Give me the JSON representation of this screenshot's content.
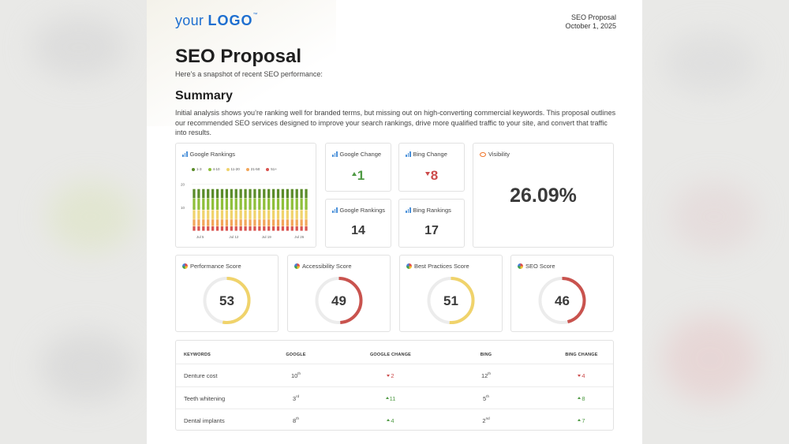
{
  "header": {
    "logo_prefix": "your",
    "logo_main": "LOGO",
    "logo_tm": "™",
    "doc_name": "SEO Proposal",
    "date": "October 1, 2025"
  },
  "title": "SEO Proposal",
  "subtitle": "Here’s a snapshot of recent SEO performance:",
  "summary": {
    "heading": "Summary",
    "text": "Initial analysis shows you’re ranking well for branded terms, but missing out on high-converting commercial keywords. This proposal outlines our recommended SEO services designed to improve your search rankings, drive more qualified traffic to your site, and convert that traffic into results."
  },
  "metrics": {
    "google_change": {
      "label": "Google Change",
      "value": "1",
      "direction": "up"
    },
    "bing_change": {
      "label": "Bing Change",
      "value": "8",
      "direction": "down"
    },
    "google_rankings": {
      "label": "Google Rankings",
      "value": "14"
    },
    "bing_rankings": {
      "label": "Bing Rankings",
      "value": "17"
    },
    "visibility": {
      "label": "Visibility",
      "value": "26.09%"
    }
  },
  "chart_data": {
    "type": "bar",
    "title": "Google Rankings",
    "stacked": true,
    "legend": [
      "1-3",
      "4-10",
      "11-20",
      "21-50",
      "51+"
    ],
    "colors": [
      "#5b8c2a",
      "#8fbf3a",
      "#f0d36b",
      "#f2a65a",
      "#d9534f"
    ],
    "y_ticks": [
      "20",
      "10"
    ],
    "x_ticks": [
      "Jul 5",
      "Jul 12",
      "Jul 19",
      "Jul 26"
    ],
    "ylim": [
      0,
      25
    ],
    "categories": [
      "1",
      "2",
      "3",
      "4",
      "5",
      "6",
      "7",
      "8",
      "9",
      "10",
      "11",
      "12",
      "13",
      "14",
      "15",
      "16",
      "17",
      "18",
      "19",
      "20",
      "21",
      "22",
      "23",
      "24",
      "25"
    ],
    "series": [
      {
        "name": "1-3",
        "values": [
          4,
          4,
          4,
          4,
          4,
          4,
          4,
          4,
          4,
          4,
          4,
          4,
          4,
          4,
          4,
          4,
          4,
          4,
          4,
          4,
          4,
          4,
          4,
          4,
          4
        ]
      },
      {
        "name": "4-10",
        "values": [
          5,
          5,
          5,
          5,
          5,
          5,
          5,
          5,
          5,
          5,
          5,
          5,
          5,
          5,
          5,
          5,
          5,
          5,
          5,
          5,
          5,
          5,
          5,
          5,
          5
        ]
      },
      {
        "name": "11-20",
        "values": [
          4,
          4,
          4,
          4,
          4,
          4,
          4,
          4,
          4,
          4,
          4,
          4,
          4,
          4,
          4,
          4,
          4,
          4,
          4,
          4,
          4,
          4,
          4,
          4,
          4
        ]
      },
      {
        "name": "21-50",
        "values": [
          3,
          3,
          3,
          3,
          3,
          3,
          3,
          3,
          3,
          3,
          3,
          3,
          3,
          3,
          3,
          3,
          3,
          3,
          3,
          3,
          3,
          3,
          3,
          3,
          3
        ]
      },
      {
        "name": "51+",
        "values": [
          2,
          2,
          2,
          2,
          2,
          2,
          2,
          2,
          2,
          2,
          2,
          2,
          2,
          2,
          2,
          2,
          2,
          2,
          2,
          2,
          2,
          2,
          2,
          2,
          2
        ]
      }
    ]
  },
  "scores": [
    {
      "label": "Performance Score",
      "value": "53",
      "color": "#f0d36b"
    },
    {
      "label": "Accessibility Score",
      "value": "49",
      "color": "#c9534e"
    },
    {
      "label": "Best Practices Score",
      "value": "51",
      "color": "#f0d36b"
    },
    {
      "label": "SEO Score",
      "value": "46",
      "color": "#c9534e"
    }
  ],
  "table": {
    "headers": [
      "KEYWORDS",
      "GOOGLE",
      "GOOGLE CHANGE",
      "BING",
      "BING CHANGE"
    ],
    "rows": [
      {
        "keyword": "Denture cost",
        "google": "10",
        "google_sup": "th",
        "gchange": "2",
        "gdir": "down",
        "bing": "12",
        "bing_sup": "th",
        "bchange": "4",
        "bdir": "down"
      },
      {
        "keyword": "Teeth whitening",
        "google": "3",
        "google_sup": "rd",
        "gchange": "11",
        "gdir": "up",
        "bing": "5",
        "bing_sup": "th",
        "bchange": "8",
        "bdir": "up"
      },
      {
        "keyword": "Dental implants",
        "google": "8",
        "google_sup": "th",
        "gchange": "4",
        "gdir": "up",
        "bing": "2",
        "bing_sup": "nd",
        "bchange": "7",
        "bdir": "up"
      }
    ]
  }
}
